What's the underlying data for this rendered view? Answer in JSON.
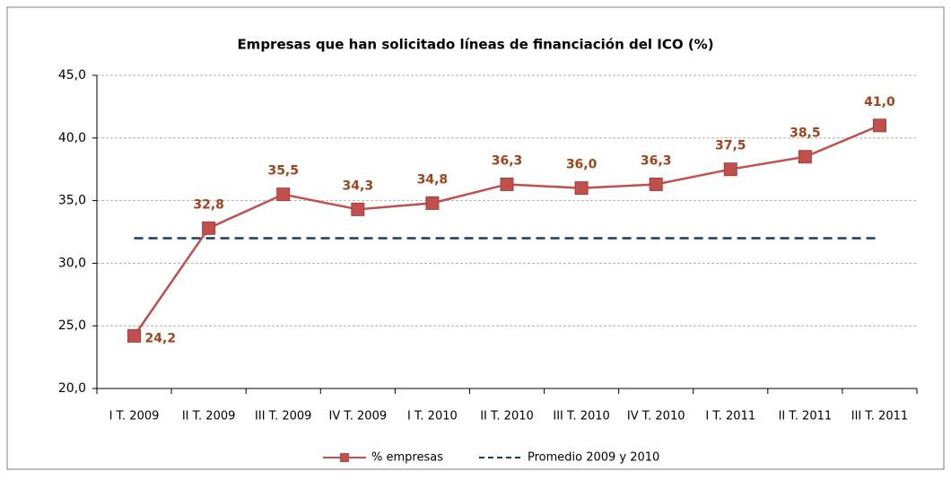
{
  "chart_data": {
    "type": "line",
    "title": "Empresas que han solicitado líneas de financiación del ICO (%)",
    "categories": [
      "I T. 2009",
      "II T. 2009",
      "III T. 2009",
      "IV T. 2009",
      "I T. 2010",
      "II T. 2010",
      "III T. 2010",
      "IV T. 2010",
      "I T. 2011",
      "II T. 2011",
      "III T. 2011"
    ],
    "series": [
      {
        "name": "% empresas",
        "color": "#c0504d",
        "values": [
          24.2,
          32.8,
          35.5,
          34.3,
          34.8,
          36.3,
          36.0,
          36.3,
          37.5,
          38.5,
          41.0
        ],
        "value_labels": [
          "24,2",
          "32,8",
          "35,5",
          "34,3",
          "34,8",
          "36,3",
          "36,0",
          "36,3",
          "37,5",
          "38,5",
          "41,0"
        ]
      },
      {
        "name": "Promedio 2009 y 2010",
        "color": "#1f3864",
        "values": [
          32,
          32,
          32,
          32,
          32,
          32,
          32,
          32,
          32,
          32,
          32
        ]
      }
    ],
    "ylim": [
      20,
      45
    ],
    "yticks": [
      {
        "value": 20,
        "label": "20,0"
      },
      {
        "value": 25,
        "label": "25,0"
      },
      {
        "value": 30,
        "label": "30,0"
      },
      {
        "value": 35,
        "label": "35,0"
      },
      {
        "value": 40,
        "label": "40,0"
      },
      {
        "value": 45,
        "label": "45,0"
      }
    ],
    "grid": true,
    "legend": "bottom"
  }
}
